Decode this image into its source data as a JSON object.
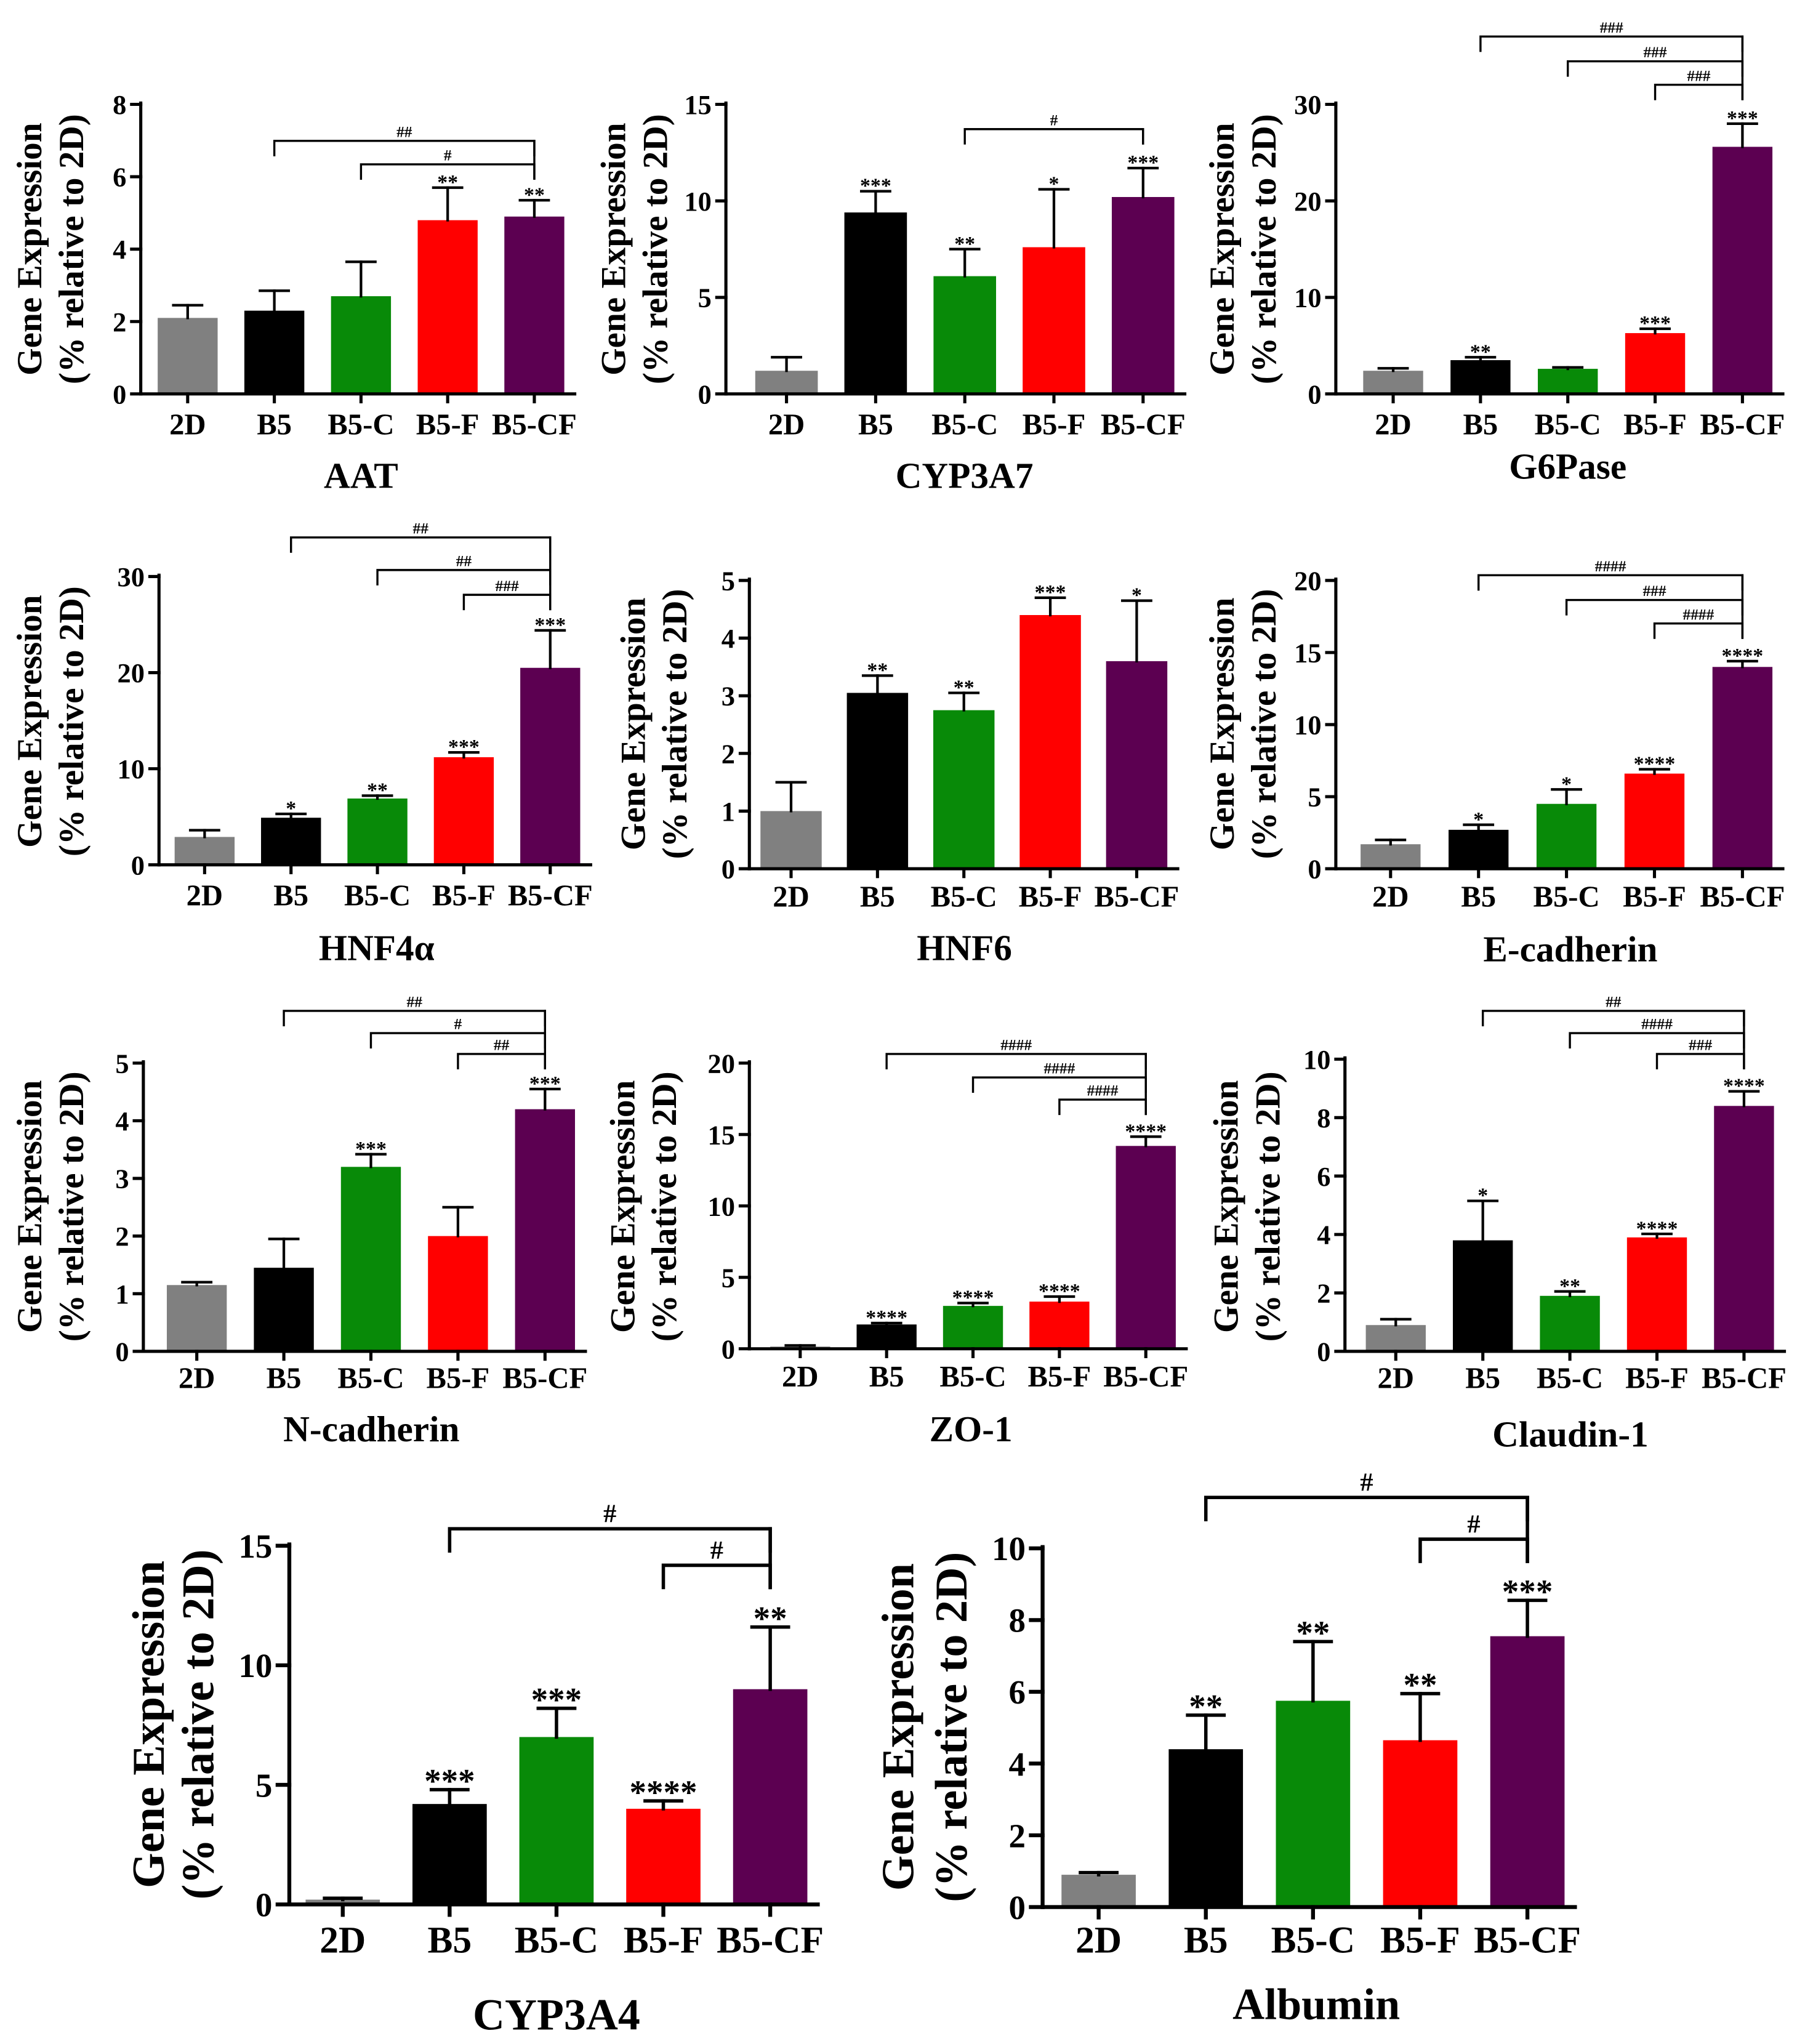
{
  "chart_data": [
    {
      "type": "bar",
      "title": "AAT",
      "categories": [
        "2D",
        "B5",
        "B5-C",
        "B5-F",
        "B5-CF"
      ],
      "values": [
        2.1,
        2.3,
        2.7,
        4.8,
        4.9
      ],
      "errors": [
        0.35,
        0.55,
        0.95,
        0.9,
        0.45
      ],
      "annotations": [
        "",
        "",
        "",
        "**",
        "**"
      ],
      "brackets": [
        {
          "from": 1,
          "to": 4,
          "label": "##"
        },
        {
          "from": 2,
          "to": 4,
          "label": "#"
        }
      ],
      "ylabel": [
        "Gene Expression",
        "(% relative to 2D)"
      ],
      "ylim": [
        0,
        8
      ],
      "yticks": [
        0,
        2,
        4,
        6,
        8
      ],
      "colors": [
        "#808080",
        "#000000",
        "#088a08",
        "#ff0000",
        "#5c0051"
      ]
    },
    {
      "type": "bar",
      "title": "CYP3A7",
      "categories": [
        "2D",
        "B5",
        "B5-C",
        "B5-F",
        "B5-CF"
      ],
      "values": [
        1.2,
        9.4,
        6.1,
        7.6,
        10.2
      ],
      "errors": [
        0.7,
        1.1,
        1.4,
        3.0,
        1.5
      ],
      "annotations": [
        "",
        "***",
        "**",
        "*",
        "***"
      ],
      "brackets": [
        {
          "from": 2,
          "to": 4,
          "label": "#"
        }
      ],
      "ylabel": [
        "Gene Expression",
        "(% relative to 2D)"
      ],
      "ylim": [
        0,
        15
      ],
      "yticks": [
        0,
        5,
        10,
        15
      ],
      "colors": [
        "#808080",
        "#000000",
        "#088a08",
        "#ff0000",
        "#5c0051"
      ]
    },
    {
      "type": "bar",
      "title": "G6Pase",
      "categories": [
        "2D",
        "B5",
        "B5-C",
        "B5-F",
        "B5-CF"
      ],
      "values": [
        2.4,
        3.5,
        2.6,
        6.3,
        25.6
      ],
      "errors": [
        0.25,
        0.3,
        0.15,
        0.45,
        2.4
      ],
      "annotations": [
        "",
        "**",
        "",
        "***",
        "***"
      ],
      "brackets": [
        {
          "from": 1,
          "to": 4,
          "label": "###"
        },
        {
          "from": 2,
          "to": 4,
          "label": "###"
        },
        {
          "from": 3,
          "to": 4,
          "label": "###"
        }
      ],
      "ylabel": [
        "Gene Expression",
        "(% relative to 2D)"
      ],
      "ylim": [
        0,
        30
      ],
      "yticks": [
        0,
        10,
        20,
        30
      ],
      "colors": [
        "#808080",
        "#000000",
        "#088a08",
        "#ff0000",
        "#5c0051"
      ]
    },
    {
      "type": "bar",
      "title": "HNF4α",
      "categories": [
        "2D",
        "B5",
        "B5-C",
        "B5-F",
        "B5-CF"
      ],
      "values": [
        2.9,
        4.9,
        6.9,
        11.2,
        20.5
      ],
      "errors": [
        0.7,
        0.4,
        0.3,
        0.5,
        3.9
      ],
      "annotations": [
        "",
        "*",
        "**",
        "***",
        "***"
      ],
      "brackets": [
        {
          "from": 1,
          "to": 4,
          "label": "##"
        },
        {
          "from": 2,
          "to": 4,
          "label": "##"
        },
        {
          "from": 3,
          "to": 4,
          "label": "###"
        }
      ],
      "ylabel": [
        "Gene Expression",
        "(% relative to 2D)"
      ],
      "ylim": [
        0,
        30
      ],
      "yticks": [
        0,
        10,
        20,
        30
      ],
      "colors": [
        "#808080",
        "#000000",
        "#088a08",
        "#ff0000",
        "#5c0051"
      ]
    },
    {
      "type": "bar",
      "title": "HNF6",
      "categories": [
        "2D",
        "B5",
        "B5-C",
        "B5-F",
        "B5-CF"
      ],
      "values": [
        1.0,
        3.05,
        2.75,
        4.4,
        3.6
      ],
      "errors": [
        0.5,
        0.3,
        0.3,
        0.3,
        1.05
      ],
      "annotations": [
        "",
        "**",
        "**",
        "***",
        "*"
      ],
      "brackets": [],
      "ylabel": [
        "Gene Expression",
        "(% relative to 2D)"
      ],
      "ylim": [
        0,
        5
      ],
      "yticks": [
        0,
        1,
        2,
        3,
        4,
        5
      ],
      "colors": [
        "#808080",
        "#000000",
        "#088a08",
        "#ff0000",
        "#5c0051"
      ]
    },
    {
      "type": "bar",
      "title": "E-cadherin",
      "categories": [
        "2D",
        "B5",
        "B5-C",
        "B5-F",
        "B5-CF"
      ],
      "values": [
        1.7,
        2.7,
        4.5,
        6.6,
        14.0
      ],
      "errors": [
        0.3,
        0.35,
        1.0,
        0.3,
        0.4
      ],
      "annotations": [
        "",
        "*",
        "*",
        "****",
        "****"
      ],
      "brackets": [
        {
          "from": 1,
          "to": 4,
          "label": "####"
        },
        {
          "from": 2,
          "to": 4,
          "label": "###"
        },
        {
          "from": 3,
          "to": 4,
          "label": "####"
        }
      ],
      "ylabel": [
        "Gene Expression",
        "(% relative to 2D)"
      ],
      "ylim": [
        0,
        20
      ],
      "yticks": [
        0,
        5,
        10,
        15,
        20
      ],
      "colors": [
        "#808080",
        "#000000",
        "#088a08",
        "#ff0000",
        "#5c0051"
      ]
    },
    {
      "type": "bar",
      "title": "N-cadherin",
      "categories": [
        "2D",
        "B5",
        "B5-C",
        "B5-F",
        "B5-CF"
      ],
      "values": [
        1.15,
        1.45,
        3.2,
        2.0,
        4.2
      ],
      "errors": [
        0.05,
        0.5,
        0.22,
        0.5,
        0.35
      ],
      "annotations": [
        "",
        "",
        "***",
        "",
        "***"
      ],
      "brackets": [
        {
          "from": 1,
          "to": 4,
          "label": "##"
        },
        {
          "from": 2,
          "to": 4,
          "label": "#"
        },
        {
          "from": 3,
          "to": 4,
          "label": "##"
        }
      ],
      "ylabel": [
        "Gene Expression",
        "(% relative to 2D)"
      ],
      "ylim": [
        0,
        5
      ],
      "yticks": [
        0,
        1,
        2,
        3,
        4,
        5
      ],
      "colors": [
        "#808080",
        "#000000",
        "#088a08",
        "#ff0000",
        "#5c0051"
      ]
    },
    {
      "type": "bar",
      "title": "ZO-1",
      "categories": [
        "2D",
        "B5",
        "B5-C",
        "B5-F",
        "B5-CF"
      ],
      "values": [
        0.15,
        1.7,
        3.0,
        3.3,
        14.2
      ],
      "errors": [
        0.08,
        0.1,
        0.2,
        0.35,
        0.65
      ],
      "annotations": [
        "",
        "****",
        "****",
        "****",
        "****"
      ],
      "brackets": [
        {
          "from": 1,
          "to": 4,
          "label": "####"
        },
        {
          "from": 2,
          "to": 4,
          "label": "####"
        },
        {
          "from": 3,
          "to": 4,
          "label": "####"
        }
      ],
      "ylabel": [
        "Gene Expression",
        "(% relative to 2D)"
      ],
      "ylim": [
        0,
        20
      ],
      "yticks": [
        0,
        5,
        10,
        15,
        20
      ],
      "colors": [
        "#808080",
        "#000000",
        "#088a08",
        "#ff0000",
        "#5c0051"
      ]
    },
    {
      "type": "bar",
      "title": "Claudin-1",
      "categories": [
        "2D",
        "B5",
        "B5-C",
        "B5-F",
        "B5-CF"
      ],
      "values": [
        0.9,
        3.8,
        1.9,
        3.9,
        8.4
      ],
      "errors": [
        0.2,
        1.35,
        0.15,
        0.12,
        0.5
      ],
      "annotations": [
        "",
        "*",
        "**",
        "****",
        "****"
      ],
      "brackets": [
        {
          "from": 1,
          "to": 4,
          "label": "##"
        },
        {
          "from": 2,
          "to": 4,
          "label": "####"
        },
        {
          "from": 3,
          "to": 4,
          "label": "###"
        }
      ],
      "ylabel": [
        "Gene Expression",
        "(% relative to 2D)"
      ],
      "ylim": [
        0,
        10
      ],
      "yticks": [
        0,
        2,
        4,
        6,
        8,
        10
      ],
      "colors": [
        "#808080",
        "#000000",
        "#088a08",
        "#ff0000",
        "#5c0051"
      ]
    },
    {
      "type": "bar",
      "title": "CYP3A4",
      "categories": [
        "2D",
        "B5",
        "B5-C",
        "B5-F",
        "B5-CF"
      ],
      "values": [
        0.2,
        4.2,
        7.0,
        4.0,
        9.0
      ],
      "errors": [
        0.06,
        0.6,
        1.2,
        0.33,
        2.6
      ],
      "annotations": [
        "",
        "***",
        "***",
        "****",
        "**"
      ],
      "brackets": [
        {
          "from": 1,
          "to": 4,
          "label": "#"
        },
        {
          "from": 3,
          "to": 4,
          "label": "#"
        }
      ],
      "ylabel": [
        "Gene Expression",
        "(% relative to 2D)"
      ],
      "ylim": [
        0,
        15
      ],
      "yticks": [
        0,
        5,
        10,
        15
      ],
      "colors": [
        "#808080",
        "#000000",
        "#088a08",
        "#ff0000",
        "#5c0051"
      ]
    },
    {
      "type": "bar",
      "title": "Albumin",
      "categories": [
        "2D",
        "B5",
        "B5-C",
        "B5-F",
        "B5-CF"
      ],
      "values": [
        0.9,
        4.4,
        5.75,
        4.65,
        7.55
      ],
      "errors": [
        0.06,
        0.95,
        1.65,
        1.3,
        1.0
      ],
      "annotations": [
        "",
        "**",
        "**",
        "**",
        "***"
      ],
      "brackets": [
        {
          "from": 1,
          "to": 4,
          "label": "#"
        },
        {
          "from": 3,
          "to": 4,
          "label": "#"
        }
      ],
      "ylabel": [
        "Gene Expression",
        "(% relative to 2D)"
      ],
      "ylim": [
        0,
        10
      ],
      "yticks": [
        0,
        2,
        4,
        6,
        8,
        10
      ],
      "colors": [
        "#808080",
        "#000000",
        "#088a08",
        "#ff0000",
        "#5c0051"
      ]
    }
  ]
}
